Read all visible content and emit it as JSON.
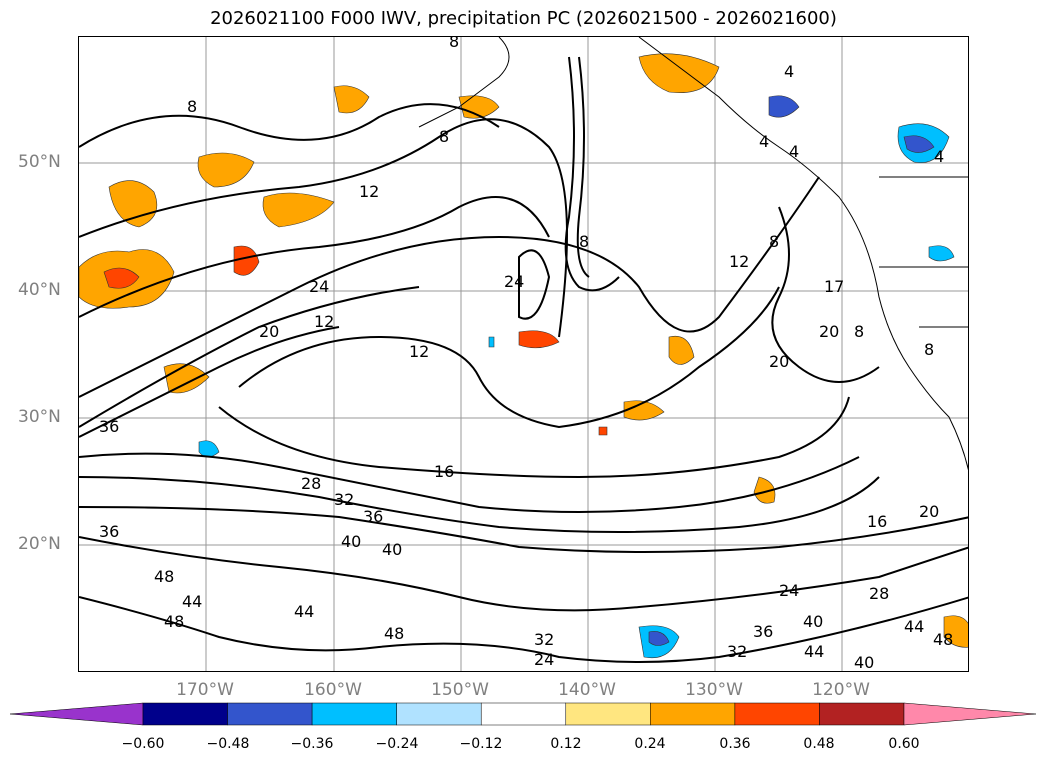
{
  "title": "2026021100 F000 IWV, precipitation PC (2026021500 - 2026021600)",
  "map": {
    "lat_labels": [
      "50°N",
      "40°N",
      "30°N",
      "20°N"
    ],
    "lon_labels": [
      "170°W",
      "160°W",
      "150°W",
      "140°W",
      "130°W",
      "120°W"
    ],
    "contour_labels": [
      "8",
      "8",
      "8",
      "8",
      "8",
      "4",
      "4",
      "4",
      "4",
      "12",
      "12",
      "12",
      "17",
      "12",
      "24",
      "24",
      "20",
      "20",
      "20",
      "8",
      "8",
      "36",
      "16",
      "28",
      "32",
      "36",
      "40",
      "40",
      "36",
      "48",
      "44",
      "48",
      "44",
      "48",
      "32",
      "24",
      "32",
      "36",
      "40",
      "44",
      "24",
      "28",
      "16",
      "20",
      "44",
      "48",
      "40"
    ]
  },
  "colorbar": {
    "ticks": [
      "−0.60",
      "−0.48",
      "−0.36",
      "−0.24",
      "−0.12",
      "0.12",
      "0.24",
      "0.36",
      "0.48",
      "0.60"
    ],
    "colors": [
      "#9933cc",
      "#00008b",
      "#3355cc",
      "#00bfff",
      "#b0e2ff",
      "#ffffff",
      "#ffe680",
      "#ffa500",
      "#ff4500",
      "#b22222",
      "#ff88aa"
    ]
  }
}
